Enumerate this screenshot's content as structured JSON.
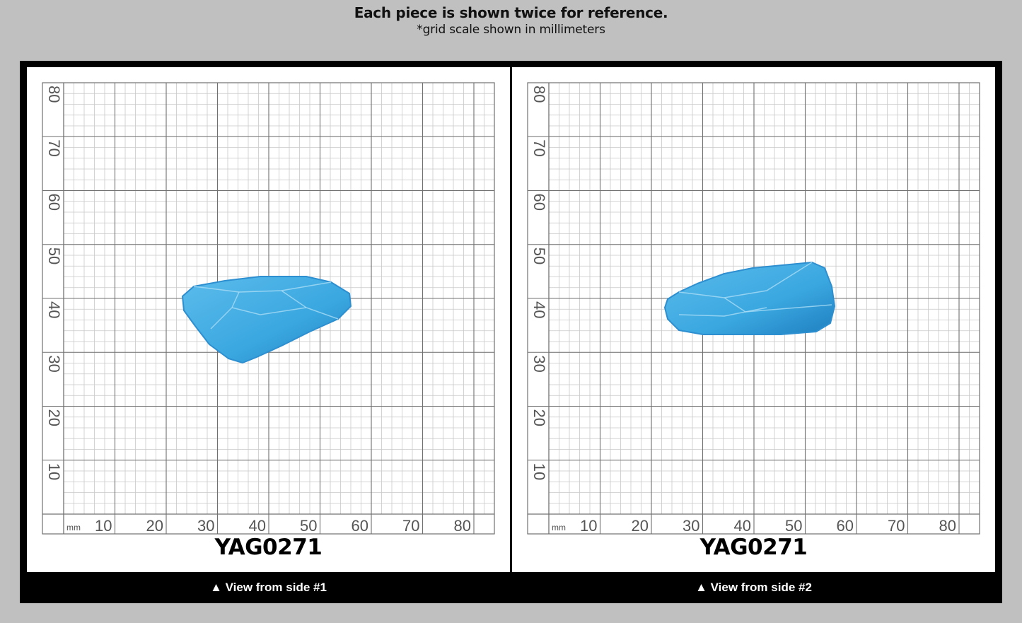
{
  "header": {
    "title": "Each piece is shown twice for reference.",
    "subtitle": "*grid scale shown in millimeters"
  },
  "grid": {
    "unit": "mm",
    "x_ticks": [
      "10",
      "20",
      "30",
      "40",
      "50",
      "60",
      "70",
      "80"
    ],
    "y_ticks": [
      "80",
      "70",
      "60",
      "50",
      "40",
      "30",
      "20",
      "10"
    ]
  },
  "views": [
    {
      "code": "YAG0271",
      "caption": "▲ View from side #1"
    },
    {
      "code": "YAG0271",
      "caption": "▲ View from side #2"
    }
  ],
  "colors": {
    "background": "#c0c0c0",
    "frame": "#000000",
    "stone": "#3aa7e0",
    "stone_dark": "#1f7fc0",
    "grid_major": "#707070",
    "grid_minor": "#c8c8c8"
  }
}
